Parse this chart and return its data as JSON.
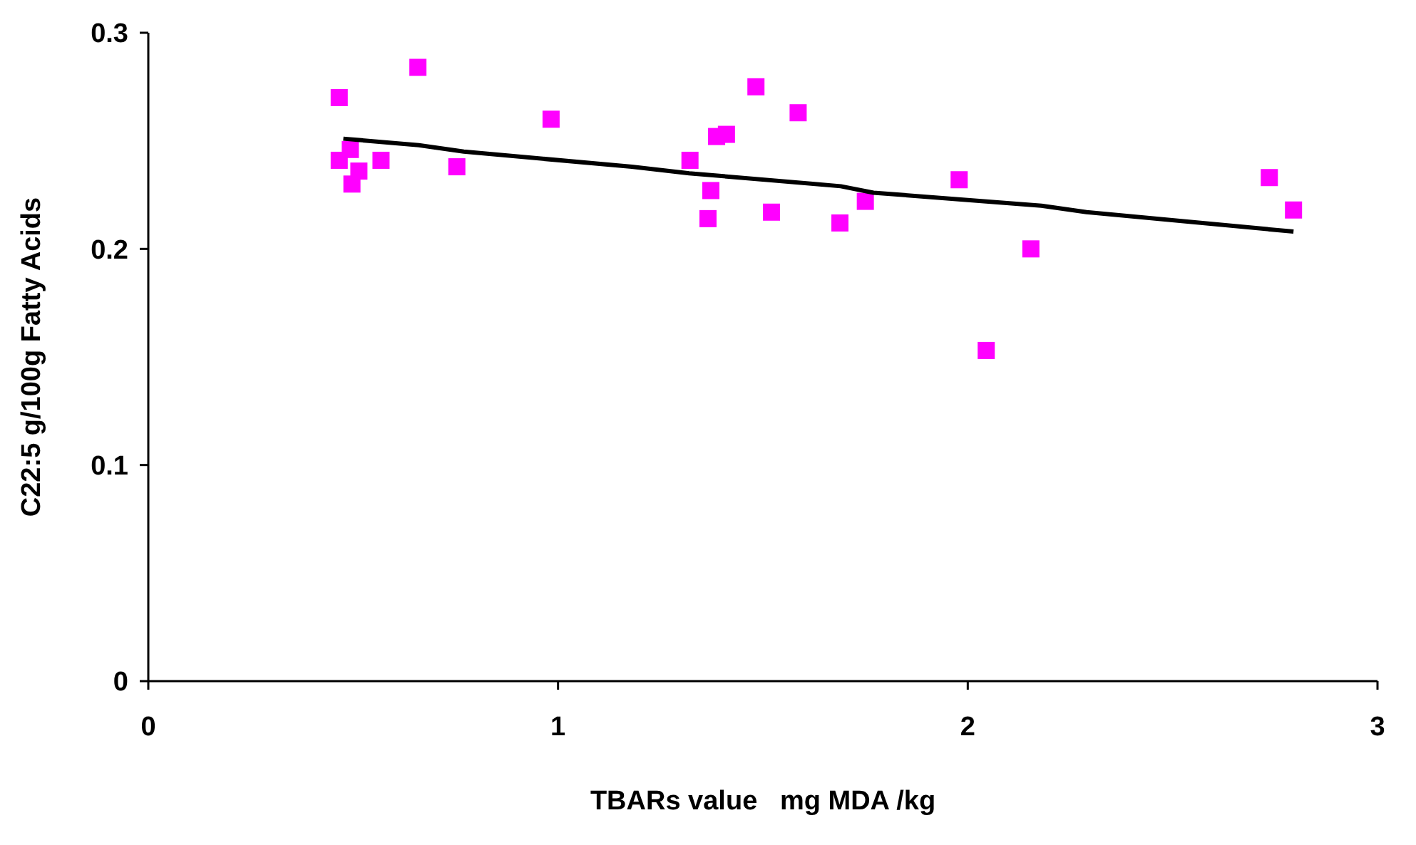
{
  "chart_data": {
    "type": "scatter",
    "xlabel": "TBARs value   mg MDA /kg",
    "ylabel": "C22:5 g/100g Fatty Acids",
    "xlim": [
      0,
      3
    ],
    "xticks": [
      0,
      1,
      2,
      3
    ],
    "ylim": [
      0,
      0.3
    ],
    "yticks": [
      0,
      0.1,
      0.2,
      0.3
    ],
    "grid": false,
    "series": [
      {
        "color": "#ff00ff",
        "marker": "square",
        "x": [
          0.466,
          0.466,
          0.493,
          0.497,
          0.514,
          0.568,
          0.658,
          0.753,
          0.983,
          1.322,
          1.366,
          1.373,
          1.387,
          1.411,
          1.483,
          1.521,
          1.586,
          1.688,
          1.75,
          1.979,
          2.045,
          2.154,
          2.736,
          2.795
        ],
        "values": [
          0.27,
          0.241,
          0.246,
          0.23,
          0.236,
          0.241,
          0.284,
          0.238,
          0.26,
          0.241,
          0.214,
          0.227,
          0.252,
          0.253,
          0.275,
          0.217,
          0.263,
          0.212,
          0.222,
          0.232,
          0.153,
          0.2,
          0.233,
          0.218
        ]
      },
      {
        "type": "line",
        "color": "#000000",
        "marker": "none",
        "line_style": "solid",
        "x": [
          0.476,
          0.66,
          0.77,
          1.18,
          1.32,
          1.69,
          1.77,
          2.18,
          2.29,
          2.795
        ],
        "values": [
          0.251,
          0.248,
          0.245,
          0.238,
          0.235,
          0.229,
          0.226,
          0.22,
          0.217,
          0.208
        ]
      }
    ]
  }
}
